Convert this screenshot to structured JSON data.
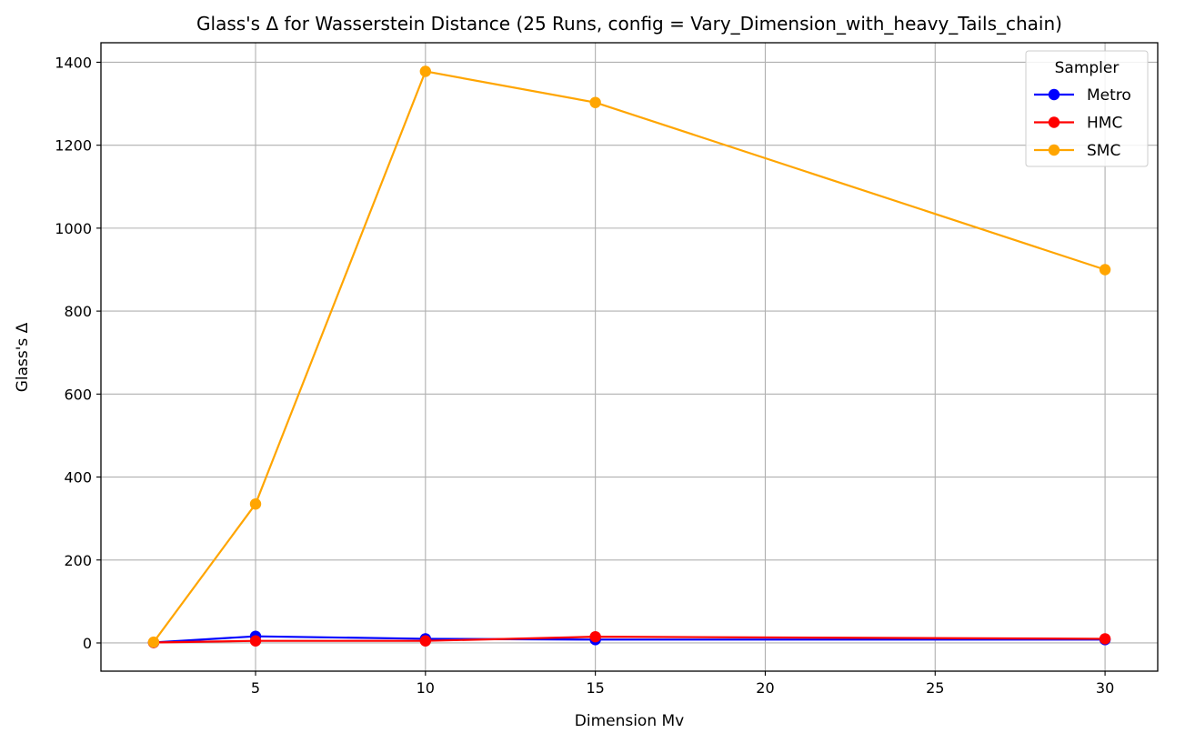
{
  "chart_data": {
    "type": "line",
    "title": "Glass's Δ for Wasserstein Distance (25 Runs, config = Vary_Dimension_with_heavy_Tails_chain)",
    "xlabel": "Dimension Mv",
    "ylabel": "Glass's Δ",
    "x": [
      2,
      5,
      10,
      15,
      30
    ],
    "xlim": [
      0.45,
      31.55
    ],
    "ylim": [
      -68,
      1447
    ],
    "xticks": [
      5,
      10,
      15,
      20,
      25,
      30
    ],
    "yticks": [
      0,
      200,
      400,
      600,
      800,
      1000,
      1200,
      1400
    ],
    "grid": true,
    "legend": {
      "title": "Sampler",
      "position": "top-right"
    },
    "series": [
      {
        "name": "Metro",
        "color": "#0000ff",
        "values": [
          1,
          16,
          10,
          8,
          8
        ]
      },
      {
        "name": "HMC",
        "color": "#ff0000",
        "values": [
          1,
          5,
          5,
          15,
          10
        ]
      },
      {
        "name": "SMC",
        "color": "#ffa500",
        "values": [
          2,
          335,
          1378,
          1303,
          900
        ]
      }
    ]
  }
}
